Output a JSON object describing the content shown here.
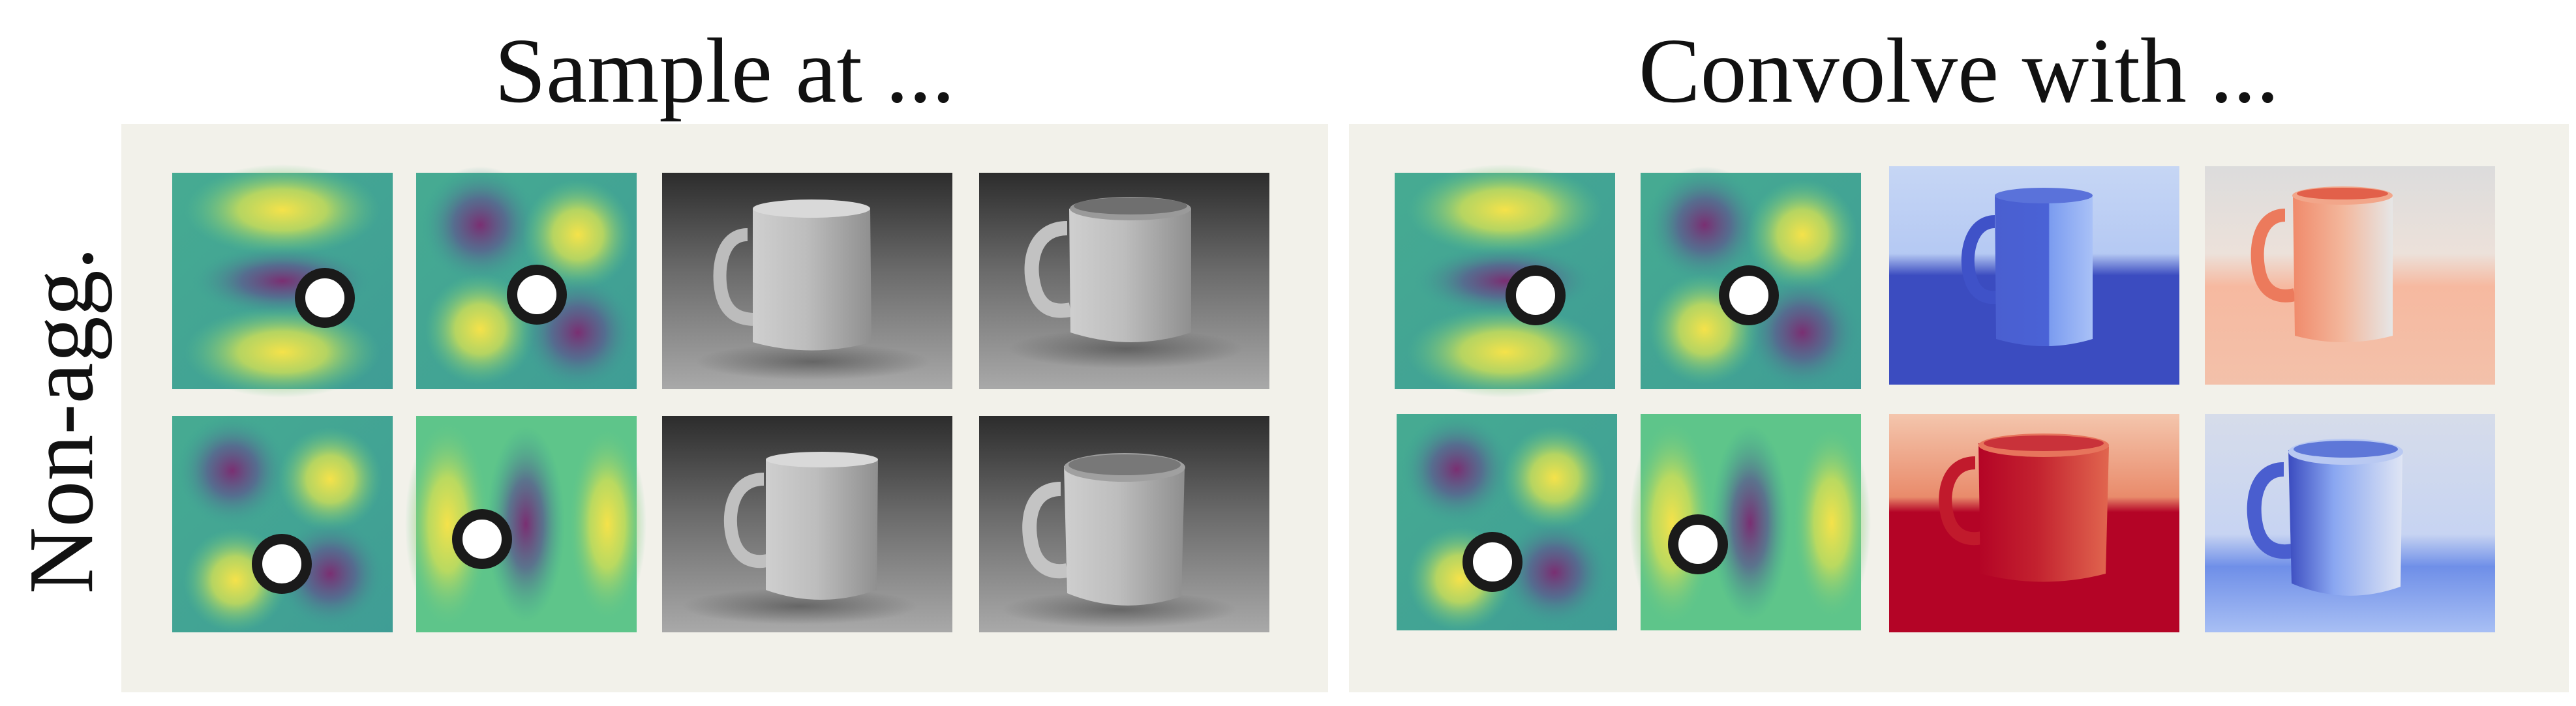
{
  "figure": {
    "headings": {
      "left": "Sample at ...",
      "right": "Convolve with ..."
    },
    "row_label": "Non-agg."
  },
  "colors": {
    "panel_bg": "#f2f1ea",
    "viridis_low": "#7a2f72",
    "viridis_mid": "#3aa394",
    "viridis_high": "#f5e24a",
    "coolwarm_blue": "#3b4cc0",
    "coolwarm_red": "#b40426",
    "sample_marker": "#1a1a1a"
  },
  "panels": {
    "left": {
      "title_key": "left",
      "cells": [
        [
          "basis-map",
          "basis-map",
          "mug-photo",
          "mug-photo"
        ],
        [
          "basis-map",
          "basis-map",
          "mug-photo",
          "mug-photo"
        ]
      ]
    },
    "right": {
      "title_key": "right",
      "cells": [
        [
          "basis-map",
          "basis-map",
          "mug-coolwarm-blue",
          "mug-coolwarm-red"
        ],
        [
          "basis-map",
          "basis-map",
          "mug-coolwarm-red",
          "mug-coolwarm-blue"
        ]
      ]
    }
  }
}
